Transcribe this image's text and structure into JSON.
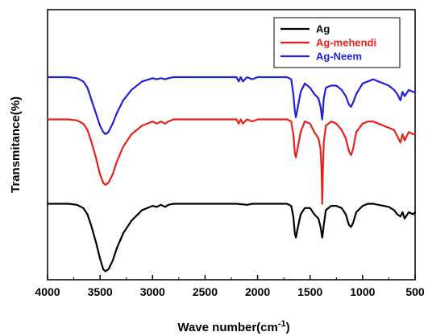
{
  "chart_data": {
    "type": "line",
    "title": "",
    "xlabel": "Wave number(cm",
    "xlabel_superscript": "-1",
    "xlabel_suffix": ")",
    "ylabel": "Transmitance(%)",
    "xlim": [
      4000,
      500
    ],
    "x_reversed": true,
    "xticks": [
      "4000",
      "3500",
      "3000",
      "2500",
      "2000",
      "1500",
      "1000",
      "500"
    ],
    "y_ticks_shown": false,
    "grid": false,
    "legend_position": "top-right",
    "series": [
      {
        "name": "Ag",
        "color": "#000000",
        "x": [
          4000,
          3800,
          3720,
          3660,
          3620,
          3580,
          3540,
          3500,
          3470,
          3450,
          3420,
          3380,
          3340,
          3280,
          3200,
          3100,
          3000,
          2960,
          2920,
          2880,
          2850,
          2800,
          2600,
          2400,
          2200,
          2100,
          2050,
          2000,
          1800,
          1720,
          1680,
          1660,
          1645,
          1635,
          1620,
          1590,
          1550,
          1500,
          1460,
          1420,
          1400,
          1384,
          1370,
          1350,
          1300,
          1250,
          1200,
          1160,
          1130,
          1110,
          1090,
          1060,
          1000,
          950,
          900,
          850,
          800,
          750,
          700,
          670,
          640,
          620,
          600,
          560,
          520,
          500
        ],
        "y": [
          20,
          20,
          19.5,
          18,
          15,
          9,
          2,
          -6,
          -11,
          -12,
          -11,
          -7,
          -1,
          6,
          12,
          17,
          19,
          18.5,
          19.5,
          18.5,
          19.5,
          20,
          20,
          20,
          20,
          19.5,
          20,
          20,
          20,
          20,
          19,
          14,
          6,
          4,
          8,
          15,
          18,
          18,
          15,
          13,
          9,
          4,
          10,
          17,
          19,
          19,
          18,
          15,
          10,
          9,
          11,
          16,
          19,
          20,
          20,
          19.5,
          19,
          18.5,
          17,
          15,
          14,
          16,
          13,
          16,
          15,
          16
        ]
      },
      {
        "name": "Ag-mehendi",
        "color": "#e8201c",
        "x": [
          4000,
          3800,
          3720,
          3660,
          3620,
          3580,
          3540,
          3500,
          3470,
          3450,
          3420,
          3380,
          3340,
          3280,
          3200,
          3100,
          3000,
          2960,
          2920,
          2880,
          2850,
          2800,
          2600,
          2400,
          2200,
          2180,
          2160,
          2140,
          2100,
          2050,
          2000,
          1800,
          1720,
          1680,
          1660,
          1645,
          1635,
          1620,
          1590,
          1550,
          1500,
          1460,
          1420,
          1400,
          1390,
          1384,
          1378,
          1370,
          1350,
          1300,
          1250,
          1200,
          1160,
          1130,
          1110,
          1090,
          1060,
          1000,
          950,
          900,
          850,
          800,
          750,
          700,
          670,
          640,
          620,
          600,
          560,
          520,
          500
        ],
        "y": [
          60,
          60,
          59.5,
          58,
          55,
          49,
          42,
          34,
          30,
          29,
          30,
          34,
          40,
          47,
          53,
          57,
          59,
          58,
          59,
          58,
          59,
          60,
          60,
          60,
          60,
          58,
          60,
          58,
          60,
          59,
          60,
          60,
          60,
          59,
          53,
          44,
          42,
          46,
          54,
          59,
          58,
          54,
          51,
          46,
          35,
          20,
          36,
          49,
          57,
          59,
          58,
          55,
          51,
          45,
          43,
          46,
          54,
          58,
          59,
          59,
          58,
          57,
          56,
          55,
          52,
          49,
          53,
          50,
          54,
          53,
          53
        ]
      },
      {
        "name": "Ag-Neem",
        "color": "#2020d8",
        "x": [
          4000,
          3800,
          3720,
          3660,
          3620,
          3580,
          3540,
          3500,
          3470,
          3450,
          3420,
          3380,
          3340,
          3280,
          3200,
          3100,
          3000,
          2960,
          2920,
          2880,
          2850,
          2800,
          2600,
          2400,
          2200,
          2180,
          2160,
          2140,
          2100,
          2050,
          2000,
          1800,
          1720,
          1680,
          1660,
          1645,
          1635,
          1620,
          1590,
          1550,
          1500,
          1460,
          1420,
          1400,
          1390,
          1384,
          1378,
          1370,
          1350,
          1300,
          1250,
          1200,
          1160,
          1130,
          1110,
          1090,
          1060,
          1000,
          950,
          900,
          850,
          800,
          750,
          700,
          670,
          640,
          620,
          600,
          560,
          520,
          500
        ],
        "y": [
          80,
          80,
          79.5,
          78,
          75,
          69,
          63,
          57,
          54,
          53,
          54,
          58,
          63,
          69,
          74,
          78,
          79.5,
          79,
          79.5,
          79,
          79.5,
          80,
          80,
          80,
          80,
          78,
          80,
          78,
          80,
          79,
          80,
          80,
          80,
          79,
          72,
          64,
          61,
          65,
          73,
          77,
          75,
          72,
          70,
          66,
          62,
          60,
          64,
          70,
          75,
          76,
          76,
          74,
          71,
          67,
          66,
          68,
          72,
          77,
          78,
          79,
          78,
          77,
          76,
          74,
          72,
          69,
          73,
          71,
          74,
          73,
          73
        ]
      }
    ]
  }
}
